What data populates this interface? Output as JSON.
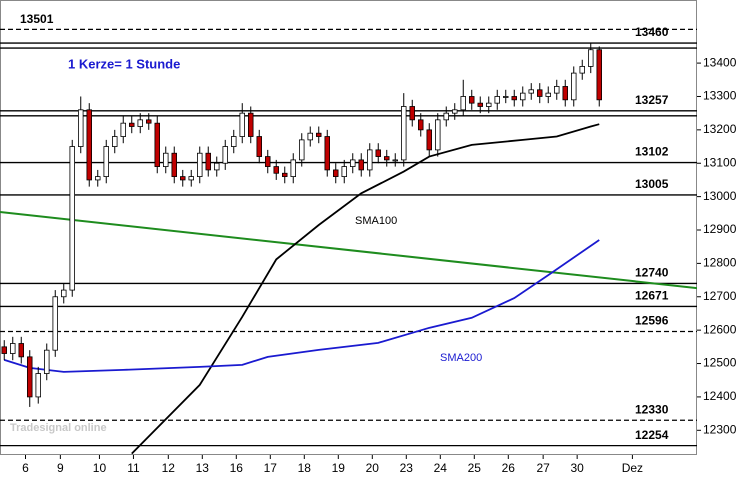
{
  "chart_data": {
    "type": "candlestick",
    "note": "1 Kerze= 1 Stunde",
    "watermark": "Tradesignal online",
    "up_color": "#ffffff",
    "down_color": "#c00000",
    "x": [
      0,
      1,
      2,
      3,
      4,
      5,
      6,
      7,
      8,
      9,
      10,
      11,
      12,
      13,
      14,
      15,
      16,
      17,
      18,
      19,
      20,
      21,
      22,
      23,
      24,
      25,
      26,
      27,
      28,
      29,
      30,
      31,
      32,
      33,
      34,
      35,
      36,
      37,
      38,
      39,
      40,
      41,
      42,
      43,
      44,
      45,
      46,
      47,
      48,
      49,
      50,
      51,
      52,
      53,
      54,
      55,
      56,
      57,
      58,
      59,
      60,
      61,
      62,
      63,
      64,
      65,
      66,
      67,
      68,
      69,
      70
    ],
    "open": [
      12550,
      12530,
      12560,
      12520,
      12400,
      12470,
      12540,
      12700,
      12720,
      13150,
      13260,
      13050,
      13060,
      13150,
      13180,
      13220,
      13210,
      13230,
      13220,
      13090,
      13130,
      13060,
      13050,
      13060,
      13130,
      13080,
      13100,
      13150,
      13180,
      13250,
      13180,
      13120,
      13090,
      13070,
      13060,
      13110,
      13170,
      13190,
      13180,
      13080,
      13060,
      13090,
      13110,
      13080,
      13140,
      13120,
      13110,
      13110,
      13270,
      13230,
      13200,
      13140,
      13230,
      13250,
      13260,
      13300,
      13280,
      13270,
      13280,
      13300,
      13300,
      13290,
      13310,
      13320,
      13300,
      13310,
      13330,
      13290,
      13370,
      13390,
      13440
    ],
    "high": [
      12570,
      12580,
      12580,
      12540,
      12490,
      12560,
      12720,
      12740,
      13170,
      13300,
      13280,
      13080,
      13170,
      13200,
      13240,
      13240,
      13250,
      13250,
      13240,
      13150,
      13150,
      13080,
      13080,
      13150,
      13150,
      13120,
      13170,
      13200,
      13280,
      13270,
      13200,
      13140,
      13110,
      13090,
      13130,
      13190,
      13210,
      13210,
      13200,
      13100,
      13110,
      13130,
      13130,
      13160,
      13160,
      13140,
      13130,
      13310,
      13290,
      13250,
      13220,
      13250,
      13270,
      13280,
      13350,
      13320,
      13300,
      13300,
      13320,
      13320,
      13320,
      13330,
      13340,
      13340,
      13330,
      13350,
      13350,
      13390,
      13410,
      13460,
      13450
    ],
    "low": [
      12510,
      12510,
      12500,
      12370,
      12380,
      12450,
      12520,
      12680,
      12700,
      13130,
      13030,
      13030,
      13040,
      13130,
      13160,
      13190,
      13190,
      13200,
      13070,
      13070,
      13040,
      13030,
      13030,
      13040,
      13060,
      13060,
      13080,
      13130,
      13160,
      13160,
      13100,
      13070,
      13050,
      13040,
      13040,
      13090,
      13150,
      13160,
      13060,
      13040,
      13040,
      13070,
      13060,
      13060,
      13100,
      13090,
      13090,
      13090,
      13210,
      13180,
      13120,
      13120,
      13210,
      13230,
      13240,
      13260,
      13250,
      13250,
      13260,
      13280,
      13270,
      13270,
      13290,
      13280,
      13280,
      13290,
      13270,
      13270,
      13350,
      13370,
      13270
    ],
    "close": [
      12530,
      12560,
      12520,
      12400,
      12470,
      12540,
      12700,
      12720,
      13150,
      13260,
      13050,
      13060,
      13150,
      13180,
      13220,
      13210,
      13230,
      13220,
      13090,
      13130,
      13060,
      13050,
      13060,
      13130,
      13080,
      13100,
      13150,
      13180,
      13250,
      13180,
      13120,
      13090,
      13070,
      13060,
      13110,
      13170,
      13190,
      13180,
      13080,
      13060,
      13090,
      13110,
      13080,
      13140,
      13120,
      13110,
      13110,
      13270,
      13230,
      13200,
      13140,
      13230,
      13250,
      13260,
      13300,
      13280,
      13270,
      13280,
      13300,
      13300,
      13290,
      13310,
      13320,
      13300,
      13310,
      13330,
      13290,
      13370,
      13390,
      13440,
      13290
    ],
    "lines": [
      {
        "name": "SMA100",
        "color": "#000000",
        "x": [
          15,
          23,
          28,
          32,
          37,
          42,
          47,
          50,
          55,
          61,
          65,
          69,
          70
        ],
        "values": [
          12230,
          12436,
          12640,
          12812,
          12915,
          13010,
          13075,
          13120,
          13155,
          13170,
          13180,
          13210,
          13217
        ]
      },
      {
        "name": "SMA200",
        "color": "#1a1ad0",
        "x": [
          0,
          3,
          7,
          14,
          23,
          28,
          31,
          37,
          44,
          50,
          55,
          60,
          64,
          70
        ],
        "values": [
          12511,
          12487,
          12475,
          12481,
          12490,
          12496,
          12520,
          12541,
          12562,
          12607,
          12637,
          12696,
          12765,
          12870
        ]
      }
    ],
    "trendline": {
      "color": "#1e8c1e",
      "x": [
        -0.5,
        81.5
      ],
      "values": [
        12954,
        12726
      ]
    },
    "levels": [
      {
        "value": 13501,
        "style": "dashed"
      },
      {
        "value": 13460,
        "style": "double"
      },
      {
        "value": 13257,
        "style": "double"
      },
      {
        "value": 13102,
        "style": "solid"
      },
      {
        "value": 13005,
        "style": "solid"
      },
      {
        "value": 12740,
        "style": "solid"
      },
      {
        "value": 12671,
        "style": "solid"
      },
      {
        "value": 12596,
        "style": "dashed"
      },
      {
        "value": 12330,
        "style": "dashed"
      },
      {
        "value": 12254,
        "style": "solid"
      }
    ],
    "xlim": [
      -0.5,
      81.5
    ],
    "ylim": [
      12226,
      13589
    ],
    "yticks": [
      12300,
      12400,
      12500,
      12600,
      12700,
      12800,
      12900,
      13000,
      13100,
      13200,
      13300,
      13400
    ],
    "xticks": [
      {
        "value": 2.5,
        "label": "6"
      },
      {
        "value": 6.6,
        "label": "9"
      },
      {
        "value": 11.2,
        "label": "10"
      },
      {
        "value": 15.2,
        "label": "11"
      },
      {
        "value": 19.3,
        "label": "12"
      },
      {
        "value": 23.3,
        "label": "13"
      },
      {
        "value": 27.3,
        "label": "16"
      },
      {
        "value": 31.3,
        "label": "17"
      },
      {
        "value": 35.3,
        "label": "18"
      },
      {
        "value": 39.3,
        "label": "19"
      },
      {
        "value": 43.3,
        "label": "20"
      },
      {
        "value": 47.3,
        "label": "23"
      },
      {
        "value": 51.3,
        "label": "24"
      },
      {
        "value": 55.3,
        "label": "25"
      },
      {
        "value": 59.3,
        "label": "26"
      },
      {
        "value": 63.4,
        "label": "27"
      },
      {
        "value": 67.4,
        "label": "30"
      },
      {
        "value": 73.9,
        "label": "Dez"
      }
    ]
  }
}
